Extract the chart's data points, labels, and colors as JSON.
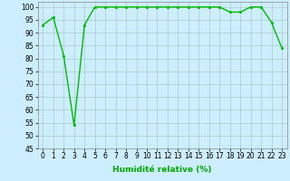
{
  "x": [
    0,
    1,
    2,
    3,
    4,
    5,
    6,
    7,
    8,
    9,
    10,
    11,
    12,
    13,
    14,
    15,
    16,
    17,
    18,
    19,
    20,
    21,
    22,
    23
  ],
  "y": [
    93,
    96,
    81,
    54,
    93,
    100,
    100,
    100,
    100,
    100,
    100,
    100,
    100,
    100,
    100,
    100,
    100,
    100,
    98,
    98,
    100,
    100,
    94,
    84
  ],
  "line_color": "#00bb00",
  "marker": "s",
  "marker_size": 1.8,
  "bg_color": "#cceeff",
  "grid_color": "#aacccc",
  "xlabel": "Humidité relative (%)",
  "ylim": [
    45,
    102
  ],
  "xlim": [
    -0.5,
    23.5
  ],
  "yticks": [
    45,
    50,
    55,
    60,
    65,
    70,
    75,
    80,
    85,
    90,
    95,
    100
  ],
  "xticks": [
    0,
    1,
    2,
    3,
    4,
    5,
    6,
    7,
    8,
    9,
    10,
    11,
    12,
    13,
    14,
    15,
    16,
    17,
    18,
    19,
    20,
    21,
    22,
    23
  ],
  "xlabel_color": "#00aa00",
  "xlabel_fontsize": 6.5,
  "tick_fontsize": 5.5,
  "linewidth": 1.0
}
